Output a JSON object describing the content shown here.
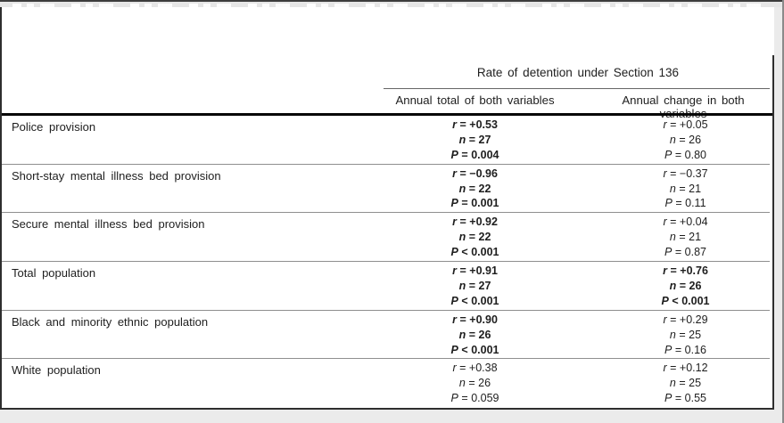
{
  "table": {
    "header": {
      "span": "Rate of detention under Section 136",
      "col1": "Annual total of both variables",
      "col2": "Annual change in both variables"
    },
    "labels": {
      "r": "r",
      "n": "n",
      "P": "P",
      "eq": "="
    },
    "rows": [
      {
        "label": "Police provision",
        "total": {
          "r": "+0.53",
          "n": "27",
          "p_op": "=",
          "P": "0.004",
          "bold": true
        },
        "change": {
          "r": "+0.05",
          "n": "26",
          "p_op": "=",
          "P": "0.80",
          "bold": false
        }
      },
      {
        "label": "Short-stay mental illness bed provision",
        "total": {
          "r": "−0.96",
          "n": "22",
          "p_op": "=",
          "P": "0.001",
          "bold": true
        },
        "change": {
          "r": "−0.37",
          "n": "21",
          "p_op": "=",
          "P": "0.11",
          "bold": false
        }
      },
      {
        "label": "Secure mental illness bed provision",
        "total": {
          "r": "+0.92",
          "n": "22",
          "p_op": "<",
          "P": "0.001",
          "bold": true
        },
        "change": {
          "r": "+0.04",
          "n": "21",
          "p_op": "=",
          "P": "0.87",
          "bold": false
        }
      },
      {
        "label": "Total population",
        "total": {
          "r": "+0.91",
          "n": "27",
          "p_op": "<",
          "P": "0.001",
          "bold": true
        },
        "change": {
          "r": "+0.76",
          "n": "26",
          "p_op": "<",
          "P": "0.001",
          "bold": true
        }
      },
      {
        "label": "Black and minority ethnic population",
        "total": {
          "r": "+0.90",
          "n": "26",
          "p_op": "<",
          "P": "0.001",
          "bold": true
        },
        "change": {
          "r": "+0.29",
          "n": "25",
          "p_op": "=",
          "P": "0.16",
          "bold": false
        }
      },
      {
        "label": "White population",
        "total": {
          "r": "+0.38",
          "n": "26",
          "p_op": "=",
          "P": "0.059",
          "bold": false
        },
        "change": {
          "r": "+0.12",
          "n": "25",
          "p_op": "=",
          "P": "0.55",
          "bold": false
        }
      }
    ]
  },
  "colors": {
    "page_background": "#ebebeb",
    "panel_background": "#ffffff",
    "text": "#1e1e1e",
    "frame_border": "#2e2e2e",
    "row_divider": "#8f8f8f",
    "thick_rule": "#060606"
  }
}
